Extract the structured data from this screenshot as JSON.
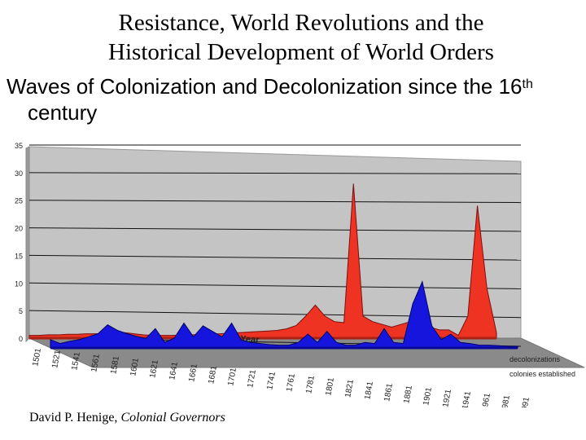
{
  "title_line1": "Resistance, World Revolutions and the",
  "title_line2": "Historical Development of World Orders",
  "subtitle_line1": "Waves of Colonization and Decolonization since the 16",
  "subtitle_sup": "th",
  "subtitle_line2": "century",
  "credit": {
    "author": "David P. Henige, ",
    "work": "Colonial Governors"
  },
  "chart_data": {
    "type": "area",
    "xlabel": "Year",
    "ylim": [
      0,
      35
    ],
    "y_ticks": [
      0,
      5,
      10,
      15,
      20,
      25,
      30,
      35
    ],
    "y_tick_labels": [
      "0",
      "5",
      "10",
      "15",
      "20",
      "25",
      "30",
      "35"
    ],
    "x": [
      1500,
      1510,
      1520,
      1530,
      1540,
      1550,
      1560,
      1570,
      1580,
      1590,
      1600,
      1610,
      1620,
      1630,
      1640,
      1650,
      1660,
      1670,
      1680,
      1690,
      1700,
      1710,
      1720,
      1730,
      1740,
      1750,
      1760,
      1770,
      1780,
      1790,
      1800,
      1810,
      1820,
      1830,
      1840,
      1850,
      1860,
      1870,
      1880,
      1890,
      1900,
      1910,
      1920,
      1930,
      1940,
      1950,
      1960,
      1970,
      1980,
      1990
    ],
    "x_tick_labels": [
      "1501",
      "1521",
      "1541",
      "1561",
      "1581",
      "1601",
      "1621",
      "1641",
      "1661",
      "1681",
      "1701",
      "1721",
      "1741",
      "1761",
      "1781",
      "1801",
      "1821",
      "1841",
      "1861",
      "1881",
      "1901",
      "1921",
      "1941",
      "1961",
      "1981",
      "1991"
    ],
    "series": [
      {
        "name": "decolonizations",
        "color": "#ee3322",
        "values": [
          0.5,
          0.5,
          0.6,
          0.6,
          0.7,
          0.7,
          0.8,
          0.8,
          0.8,
          1.0,
          1.0,
          0.8,
          0.6,
          0.5,
          0.5,
          0.5,
          0.6,
          0.6,
          0.7,
          0.7,
          0.8,
          0.9,
          1.0,
          1.1,
          1.2,
          1.3,
          1.4,
          1.7,
          2.3,
          4.0,
          6.0,
          4.0,
          3.0,
          2.8,
          28.0,
          4.0,
          3.0,
          2.5,
          2.0,
          2.5,
          3.0,
          2.5,
          2.0,
          1.5,
          1.5,
          0.5,
          4.0,
          24.0,
          9.0,
          1.0
        ]
      },
      {
        "name": "colonies established",
        "color": "#1515dd",
        "values": [
          1.5,
          0.8,
          1.2,
          1.5,
          2.0,
          2.6,
          4.2,
          3.2,
          2.6,
          2.1,
          1.7,
          3.5,
          1.0,
          1.8,
          4.5,
          2.0,
          4.0,
          3.0,
          2.0,
          4.5,
          1.5,
          1.0,
          0.8,
          0.6,
          0.5,
          0.5,
          1.0,
          2.5,
          1.0,
          3.0,
          1.0,
          0.5,
          0.5,
          1.0,
          0.8,
          3.5,
          1.0,
          0.8,
          8.0,
          12.0,
          4.0,
          1.5,
          2.5,
          1.0,
          0.8,
          0.5,
          0.5,
          0.4,
          0.3,
          0.3
        ]
      }
    ]
  }
}
